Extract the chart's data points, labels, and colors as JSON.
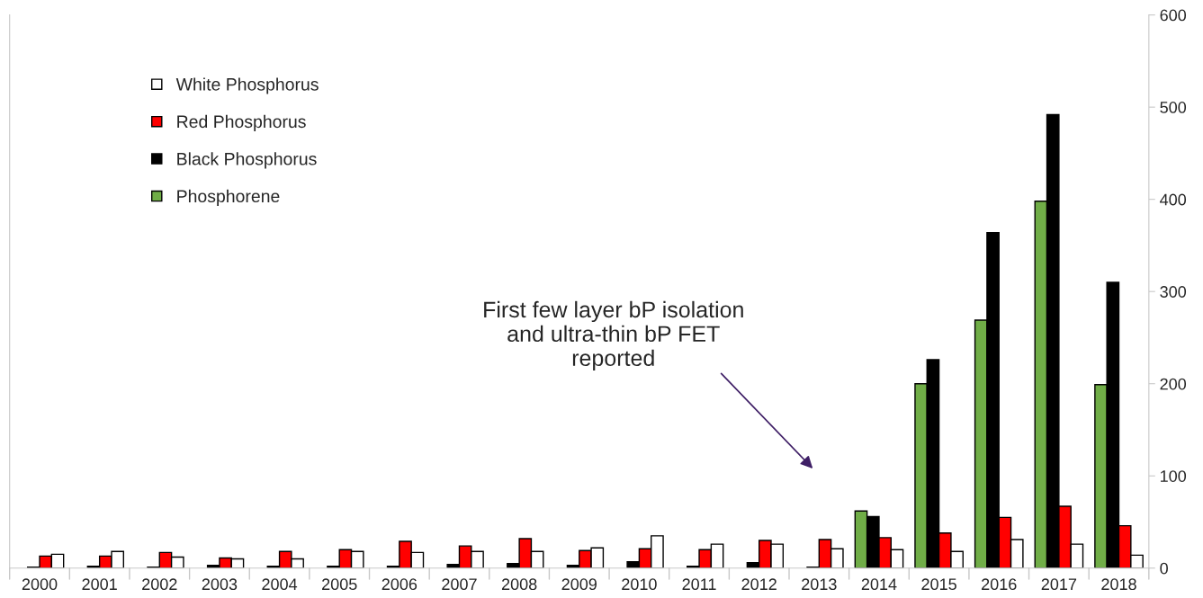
{
  "chart_data": {
    "type": "bar",
    "categories": [
      "2000",
      "2001",
      "2002",
      "2003",
      "2004",
      "2005",
      "2006",
      "2007",
      "2008",
      "2009",
      "2010",
      "2011",
      "2012",
      "2013",
      "2014",
      "2015",
      "2016",
      "2017",
      "2018"
    ],
    "series": [
      {
        "name": "Phosphorene",
        "color": "#70ad47",
        "values": [
          null,
          null,
          null,
          null,
          null,
          null,
          null,
          null,
          null,
          null,
          null,
          null,
          null,
          null,
          62,
          200,
          269,
          398,
          199
        ]
      },
      {
        "name": "Black Phosphorus",
        "color": "#000000",
        "values": [
          1,
          2,
          1,
          3,
          2,
          2,
          2,
          4,
          5,
          3,
          7,
          2,
          6,
          1,
          56,
          226,
          364,
          492,
          310
        ]
      },
      {
        "name": "Red Phosphorus",
        "color": "#ff0000",
        "values": [
          13,
          13,
          17,
          11,
          18,
          20,
          29,
          24,
          32,
          19,
          21,
          20,
          30,
          31,
          33,
          38,
          55,
          67,
          46
        ]
      },
      {
        "name": "White Phosphorus",
        "color": "#ffffff",
        "values": [
          15,
          18,
          12,
          10,
          10,
          18,
          17,
          18,
          18,
          22,
          35,
          26,
          26,
          21,
          20,
          18,
          31,
          26,
          14
        ]
      }
    ],
    "ylim": [
      0,
      600
    ],
    "yticks": [
      0,
      100,
      200,
      300,
      400,
      500,
      600
    ],
    "grid": false,
    "legend": "top left",
    "annotations": [
      "First few layer bP isolation\nand ultra-thin bP FET\nreported"
    ]
  }
}
